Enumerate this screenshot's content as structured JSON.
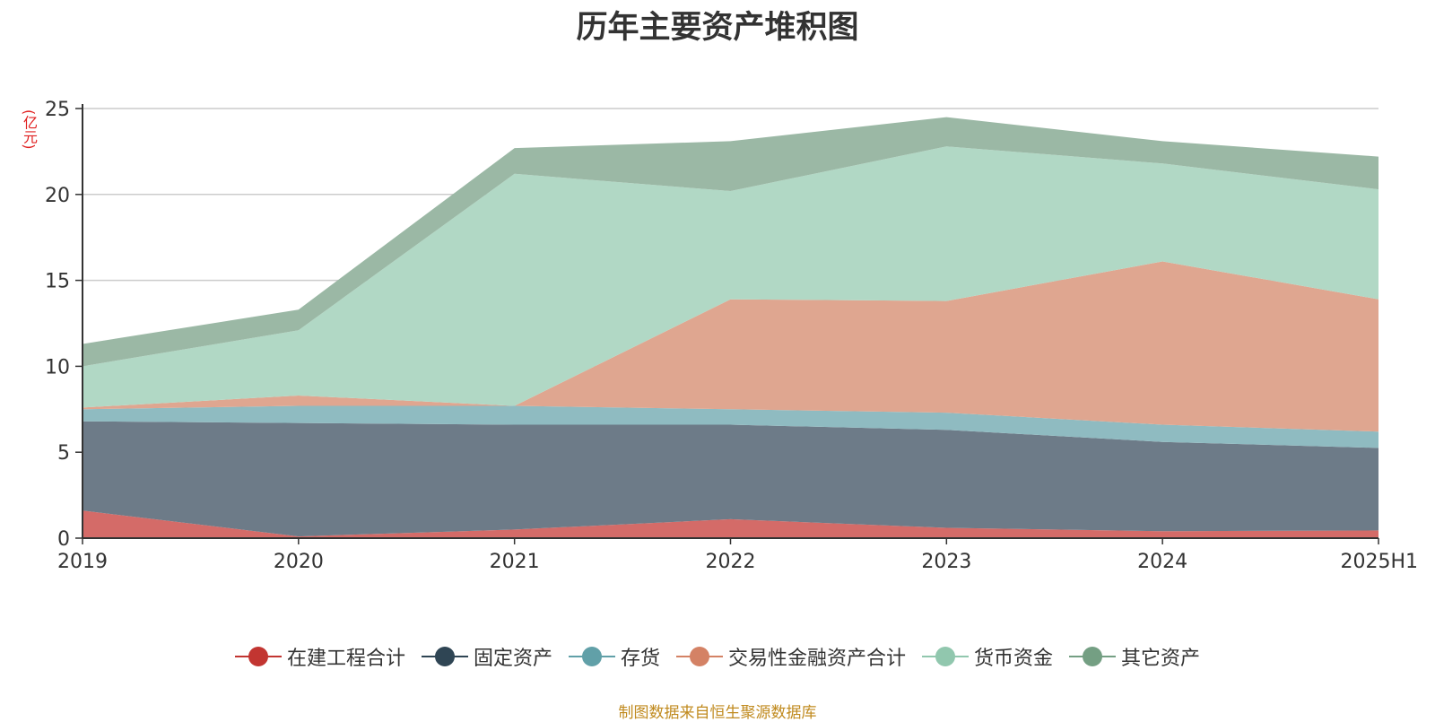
{
  "chart_data": {
    "type": "area",
    "stacked": true,
    "title": "历年主要资产堆积图",
    "y_unit": "(亿元)",
    "categories": [
      "2019",
      "2020",
      "2021",
      "2022",
      "2023",
      "2024",
      "2025H1"
    ],
    "y_ticks": [
      "0",
      "5",
      "10",
      "15",
      "20",
      "25"
    ],
    "ylim": [
      0,
      25
    ],
    "grid": true,
    "legend_position": "bottom",
    "series": [
      {
        "name": "在建工程合计",
        "color": "#c23531",
        "fill": "#d46b68",
        "values": [
          1.6,
          0.1,
          0.5,
          1.1,
          0.6,
          0.4,
          0.45
        ]
      },
      {
        "name": "固定资产",
        "color": "#2f4554",
        "fill": "#6d7b88",
        "values": [
          5.2,
          6.6,
          6.1,
          5.5,
          5.7,
          5.2,
          4.8
        ]
      },
      {
        "name": "存货",
        "color": "#61a0a8",
        "fill": "#8fbbc1",
        "values": [
          0.7,
          1.0,
          1.1,
          0.9,
          1.0,
          1.0,
          0.95
        ]
      },
      {
        "name": "交易性金融资产合计",
        "color": "#d48265",
        "fill": "#dfa690",
        "values": [
          0.1,
          0.6,
          0.0,
          6.4,
          6.5,
          9.5,
          7.7
        ]
      },
      {
        "name": "货币资金",
        "color": "#91c7ae",
        "fill": "#b1d8c5",
        "values": [
          2.4,
          3.8,
          13.5,
          6.3,
          9.0,
          5.7,
          6.4
        ]
      },
      {
        "name": "其它资产",
        "color": "#749f83",
        "fill": "#9bb8a5",
        "values": [
          1.3,
          1.2,
          1.5,
          2.9,
          1.7,
          1.3,
          1.9
        ]
      }
    ]
  },
  "source_note": "制图数据来自恒生聚源数据库"
}
